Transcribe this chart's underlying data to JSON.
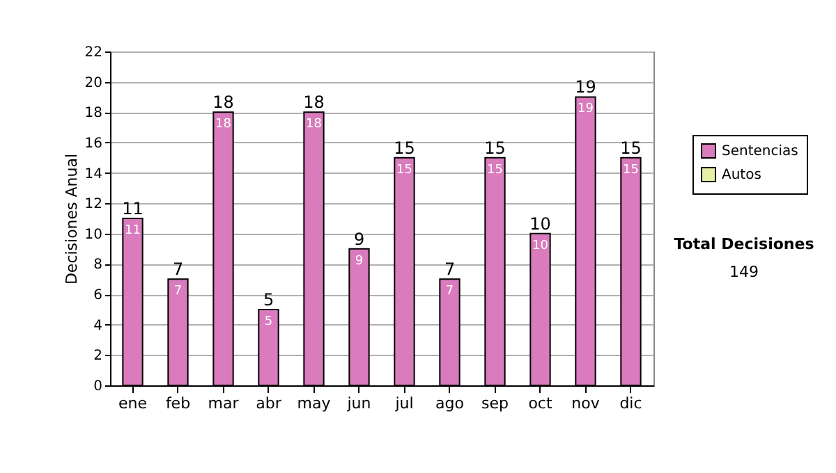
{
  "chart_data": {
    "type": "bar",
    "ylabel": "Decisiones Anual",
    "categories": [
      "ene",
      "feb",
      "mar",
      "abr",
      "may",
      "jun",
      "jul",
      "ago",
      "sep",
      "oct",
      "nov",
      "dic"
    ],
    "series": [
      {
        "name": "Sentencias",
        "color": "#d97bbd",
        "values": [
          11,
          7,
          18,
          5,
          18,
          9,
          15,
          7,
          15,
          10,
          19,
          15
        ]
      },
      {
        "name": "Autos",
        "color": "#e8f0a8",
        "values": [
          null,
          null,
          null,
          null,
          null,
          null,
          null,
          null,
          null,
          null,
          null,
          null
        ]
      }
    ],
    "ylim": [
      0,
      22
    ],
    "yticks": [
      0,
      2,
      4,
      6,
      8,
      10,
      12,
      14,
      16,
      18,
      20,
      22
    ],
    "grid": "y",
    "legend": "right",
    "data_labels": true,
    "totals": [
      "11",
      "7",
      "18",
      "5",
      "18",
      "9",
      "15",
      "7",
      "15",
      "10",
      "19",
      "15"
    ],
    "annotations": [
      "Total Decisiones",
      "149"
    ]
  }
}
